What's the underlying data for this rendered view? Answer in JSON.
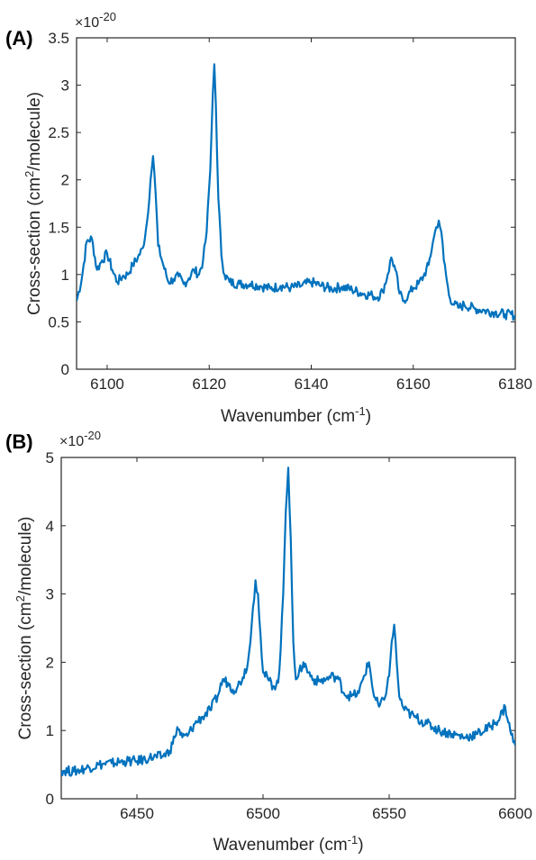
{
  "panels": [
    {
      "label": "(A)",
      "chart_data": {
        "type": "line",
        "xlabel_main": "Wavenumber (cm",
        "xlabel_sup": "-1",
        "xlabel_tail": ")",
        "ylabel_main": "Cross-section (cm",
        "ylabel_sup": "2",
        "ylabel_tail": "/molecule)",
        "exponent_prefix": "×10",
        "exponent_power": "-20",
        "xlim": [
          6094,
          6180
        ],
        "ylim": [
          0,
          3.5
        ],
        "xticks": [
          6100,
          6120,
          6140,
          6160,
          6180
        ],
        "yticks": [
          0,
          0.5,
          1,
          1.5,
          2,
          2.5,
          3,
          3.5
        ],
        "ytick_labels": [
          "0",
          "0.5",
          "1",
          "1.5",
          "2",
          "2.5",
          "3",
          "3.5"
        ],
        "line_color": "#0072BD",
        "grid": false,
        "series": [
          {
            "x": [
              6094,
              6095,
              6096,
              6097,
              6098,
              6099,
              6100,
              6101,
              6102,
              6103,
              6104,
              6105,
              6106,
              6107,
              6107.8,
              6108.5,
              6109,
              6109.5,
              6110,
              6111,
              6112,
              6113,
              6114,
              6115,
              6116,
              6117,
              6118,
              6118.8,
              6119.5,
              6120.2,
              6120.7,
              6121,
              6121.3,
              6121.8,
              6122.4,
              6123,
              6124,
              6126,
              6128,
              6130,
              6132,
              6134,
              6136,
              6138,
              6140,
              6142,
              6144,
              6146,
              6148,
              6150,
              6152,
              6153,
              6154,
              6155,
              6155.7,
              6156.5,
              6157.3,
              6158,
              6159,
              6160,
              6161,
              6162,
              6163,
              6164,
              6164.5,
              6165,
              6165.5,
              6166,
              6167,
              6168,
              6169,
              6170,
              6172,
              6174,
              6176,
              6178,
              6180
            ],
            "y": [
              0.72,
              0.95,
              1.35,
              1.38,
              1.05,
              1.15,
              1.22,
              1.05,
              0.92,
              0.98,
              1.0,
              1.1,
              1.18,
              1.28,
              1.55,
              2.0,
              2.25,
              1.85,
              1.3,
              1.1,
              0.92,
              0.95,
              0.98,
              0.9,
              0.96,
              1.05,
              1.0,
              1.15,
              1.45,
              2.1,
              2.9,
              3.22,
              2.8,
              1.8,
              1.2,
              1.0,
              0.92,
              0.9,
              0.9,
              0.88,
              0.85,
              0.88,
              0.86,
              0.88,
              0.92,
              0.88,
              0.85,
              0.87,
              0.84,
              0.8,
              0.78,
              0.76,
              0.82,
              1.0,
              1.18,
              1.05,
              0.8,
              0.72,
              0.78,
              0.86,
              0.9,
              0.98,
              1.1,
              1.38,
              1.5,
              1.57,
              1.45,
              1.15,
              0.78,
              0.68,
              0.65,
              0.68,
              0.64,
              0.62,
              0.6,
              0.58,
              0.57
            ]
          }
        ]
      }
    },
    {
      "label": "(B)",
      "chart_data": {
        "type": "line",
        "xlabel_main": "Wavenumber (cm",
        "xlabel_sup": "-1",
        "xlabel_tail": ")",
        "ylabel_main": "Cross-section (cm",
        "ylabel_sup": "2",
        "ylabel_tail": "/molecule)",
        "exponent_prefix": "×10",
        "exponent_power": "-20",
        "xlim": [
          6420,
          6600
        ],
        "ylim": [
          0,
          5
        ],
        "xticks": [
          6450,
          6500,
          6550,
          6600
        ],
        "yticks": [
          0,
          1,
          2,
          3,
          4,
          5
        ],
        "ytick_labels": [
          "0",
          "1",
          "2",
          "3",
          "4",
          "5"
        ],
        "line_color": "#0072BD",
        "grid": false,
        "series": [
          {
            "x": [
              6420,
              6425,
              6430,
              6435,
              6440,
              6445,
              6450,
              6455,
              6460,
              6463,
              6465,
              6466,
              6468,
              6470,
              6473,
              6476,
              6479,
              6482,
              6484,
              6486,
              6488,
              6490,
              6492,
              6494,
              6495,
              6496,
              6497,
              6498,
              6499,
              6500,
              6502,
              6504,
              6506,
              6507,
              6508,
              6509,
              6510,
              6511,
              6512,
              6513,
              6514,
              6516,
              6518,
              6520,
              6522,
              6525,
              6528,
              6530,
              6532,
              6535,
              6538,
              6540,
              6542,
              6544,
              6546,
              6548,
              6550,
              6551,
              6552,
              6553,
              6554,
              6556,
              6560,
              6565,
              6570,
              6575,
              6580,
              6585,
              6590,
              6594,
              6596,
              6598,
              6600
            ],
            "y": [
              0.42,
              0.4,
              0.45,
              0.5,
              0.52,
              0.55,
              0.55,
              0.6,
              0.62,
              0.7,
              0.9,
              1.05,
              0.9,
              0.92,
              1.1,
              1.2,
              1.3,
              1.5,
              1.75,
              1.7,
              1.6,
              1.65,
              1.78,
              2.0,
              2.3,
              2.8,
              3.2,
              3.0,
              2.4,
              1.85,
              1.75,
              1.65,
              1.7,
              2.2,
              3.0,
              4.2,
              4.85,
              3.8,
              2.3,
              1.75,
              1.8,
              2.0,
              1.85,
              1.75,
              1.72,
              1.75,
              1.8,
              1.75,
              1.55,
              1.5,
              1.55,
              1.8,
              2.0,
              1.5,
              1.35,
              1.45,
              1.8,
              2.3,
              2.55,
              2.0,
              1.5,
              1.3,
              1.2,
              1.1,
              1.0,
              0.95,
              0.9,
              0.95,
              1.05,
              1.2,
              1.35,
              1.0,
              0.78
            ]
          }
        ]
      }
    }
  ]
}
